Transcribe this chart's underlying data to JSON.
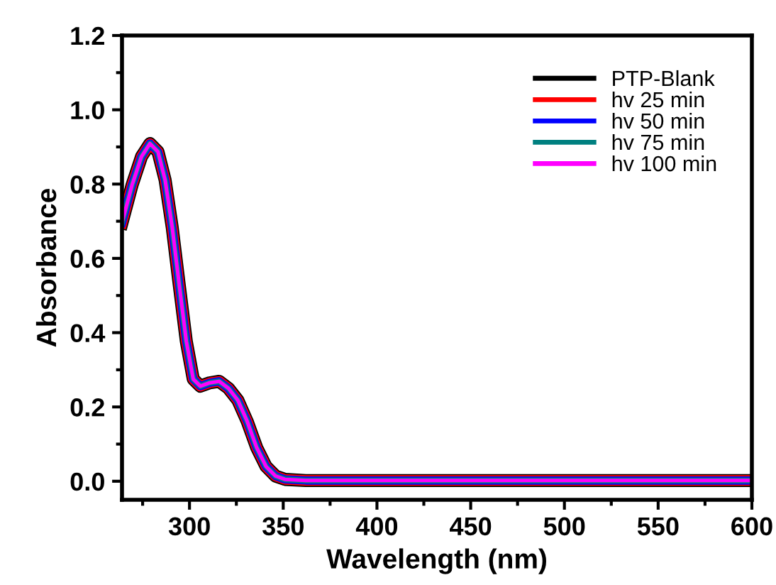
{
  "chart_data": {
    "type": "line",
    "xlabel": "Wavelength (nm)",
    "ylabel": "Absorbance",
    "x": [
      264,
      269.4,
      274.4,
      278.9,
      283.2,
      287,
      290.8,
      294.5,
      298.3,
      302,
      305.8,
      310.8,
      315.8,
      320.8,
      325.8,
      330.8,
      335.8,
      340.8,
      345.9,
      350.9,
      362,
      400,
      450,
      500,
      550,
      600
    ],
    "series": [
      {
        "name": "PTP-Blank",
        "color": "#000000",
        "values": [
          0.696,
          0.798,
          0.874,
          0.909,
          0.887,
          0.811,
          0.683,
          0.53,
          0.377,
          0.275,
          0.256,
          0.265,
          0.269,
          0.25,
          0.218,
          0.161,
          0.091,
          0.04,
          0.014,
          0.005,
          0.002,
          0.002,
          0.002,
          0.002,
          0.002,
          0.002
        ]
      },
      {
        "name": "hv 25 min",
        "color": "#ff0000",
        "values": [
          0.696,
          0.798,
          0.874,
          0.909,
          0.887,
          0.811,
          0.683,
          0.53,
          0.377,
          0.275,
          0.256,
          0.265,
          0.269,
          0.25,
          0.218,
          0.161,
          0.091,
          0.04,
          0.014,
          0.005,
          0.002,
          0.002,
          0.002,
          0.002,
          0.002,
          0.002
        ]
      },
      {
        "name": "hv 50 min",
        "color": "#0000ff",
        "values": [
          0.696,
          0.798,
          0.874,
          0.909,
          0.887,
          0.811,
          0.683,
          0.53,
          0.377,
          0.275,
          0.256,
          0.265,
          0.269,
          0.25,
          0.218,
          0.161,
          0.091,
          0.04,
          0.014,
          0.005,
          0.002,
          0.002,
          0.002,
          0.002,
          0.002,
          0.002
        ]
      },
      {
        "name": "hv 75 min",
        "color": "#008080",
        "values": [
          0.696,
          0.798,
          0.874,
          0.909,
          0.887,
          0.811,
          0.683,
          0.53,
          0.377,
          0.275,
          0.256,
          0.265,
          0.269,
          0.25,
          0.218,
          0.161,
          0.091,
          0.04,
          0.014,
          0.005,
          0.002,
          0.002,
          0.002,
          0.002,
          0.002,
          0.002
        ]
      },
      {
        "name": "hv 100 min",
        "color": "#ff00ff",
        "values": [
          0.696,
          0.798,
          0.874,
          0.909,
          0.887,
          0.811,
          0.683,
          0.53,
          0.377,
          0.275,
          0.256,
          0.265,
          0.269,
          0.25,
          0.218,
          0.161,
          0.091,
          0.04,
          0.014,
          0.005,
          0.002,
          0.002,
          0.002,
          0.002,
          0.002,
          0.002
        ]
      }
    ],
    "xlim": [
      264,
      600
    ],
    "xticks": [
      300,
      350,
      400,
      450,
      500,
      550,
      600
    ],
    "ylim": [
      -0.05,
      1.2
    ],
    "yticks": [
      {
        "value": 0,
        "label": "0.0"
      },
      0.2,
      0.4,
      0.6,
      0.8,
      {
        "value": 1,
        "label": "1.0"
      },
      1.2
    ],
    "grid": false,
    "legend": "top right",
    "marker": "none",
    "line_style": "solid"
  }
}
